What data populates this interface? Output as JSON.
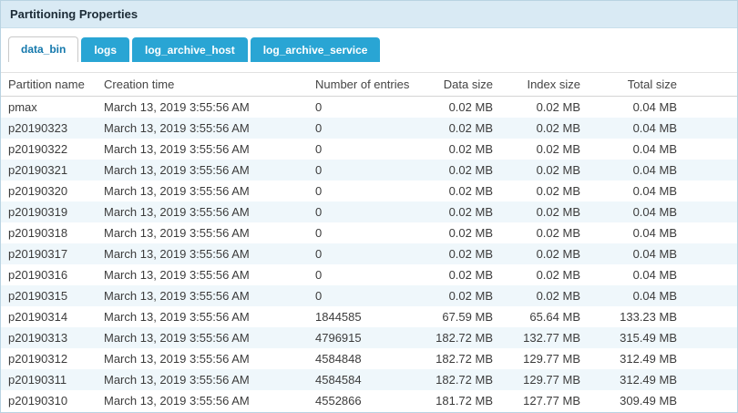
{
  "title": "Partitioning Properties",
  "tabs": [
    {
      "label": "data_bin",
      "active": true
    },
    {
      "label": "logs",
      "active": false
    },
    {
      "label": "log_archive_host",
      "active": false
    },
    {
      "label": "log_archive_service",
      "active": false
    }
  ],
  "table": {
    "columns": [
      "Partition name",
      "Creation time",
      "Number of entries",
      "Data size",
      "Index size",
      "Total size"
    ],
    "rows": [
      [
        "pmax",
        "March 13, 2019 3:55:56 AM",
        "0",
        "0.02 MB",
        "0.02 MB",
        "0.04 MB"
      ],
      [
        "p20190323",
        "March 13, 2019 3:55:56 AM",
        "0",
        "0.02 MB",
        "0.02 MB",
        "0.04 MB"
      ],
      [
        "p20190322",
        "March 13, 2019 3:55:56 AM",
        "0",
        "0.02 MB",
        "0.02 MB",
        "0.04 MB"
      ],
      [
        "p20190321",
        "March 13, 2019 3:55:56 AM",
        "0",
        "0.02 MB",
        "0.02 MB",
        "0.04 MB"
      ],
      [
        "p20190320",
        "March 13, 2019 3:55:56 AM",
        "0",
        "0.02 MB",
        "0.02 MB",
        "0.04 MB"
      ],
      [
        "p20190319",
        "March 13, 2019 3:55:56 AM",
        "0",
        "0.02 MB",
        "0.02 MB",
        "0.04 MB"
      ],
      [
        "p20190318",
        "March 13, 2019 3:55:56 AM",
        "0",
        "0.02 MB",
        "0.02 MB",
        "0.04 MB"
      ],
      [
        "p20190317",
        "March 13, 2019 3:55:56 AM",
        "0",
        "0.02 MB",
        "0.02 MB",
        "0.04 MB"
      ],
      [
        "p20190316",
        "March 13, 2019 3:55:56 AM",
        "0",
        "0.02 MB",
        "0.02 MB",
        "0.04 MB"
      ],
      [
        "p20190315",
        "March 13, 2019 3:55:56 AM",
        "0",
        "0.02 MB",
        "0.02 MB",
        "0.04 MB"
      ],
      [
        "p20190314",
        "March 13, 2019 3:55:56 AM",
        "1844585",
        "67.59 MB",
        "65.64 MB",
        "133.23 MB"
      ],
      [
        "p20190313",
        "March 13, 2019 3:55:56 AM",
        "4796915",
        "182.72 MB",
        "132.77 MB",
        "315.49 MB"
      ],
      [
        "p20190312",
        "March 13, 2019 3:55:56 AM",
        "4584848",
        "182.72 MB",
        "129.77 MB",
        "312.49 MB"
      ],
      [
        "p20190311",
        "March 13, 2019 3:55:56 AM",
        "4584584",
        "182.72 MB",
        "129.77 MB",
        "312.49 MB"
      ],
      [
        "p20190310",
        "March 13, 2019 3:55:56 AM",
        "4552866",
        "181.72 MB",
        "127.77 MB",
        "309.49 MB"
      ]
    ]
  },
  "colors": {
    "title_bar_bg": "#d9eaf4",
    "tab_bg": "#29a5d4",
    "tab_text": "#ffffff",
    "active_tab_bg": "#ffffff",
    "active_tab_text": "#1478ac",
    "row_alt_bg": "#eff7fb",
    "panel_border": "#b9d3e2",
    "body_text": "#3c3c3c"
  }
}
